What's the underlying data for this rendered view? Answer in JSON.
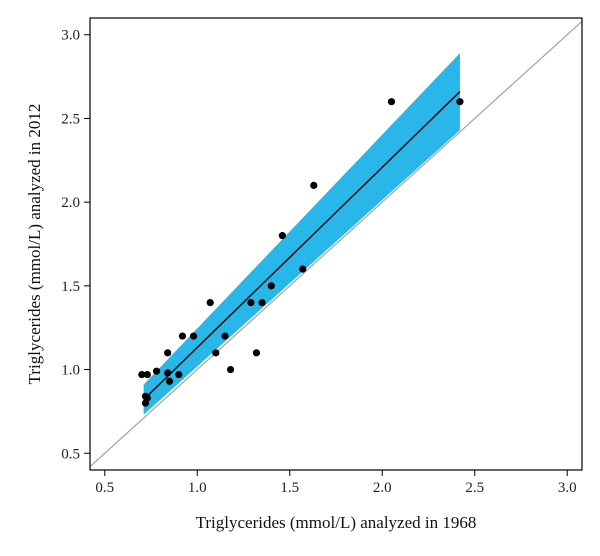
{
  "chart_data": {
    "type": "scatter",
    "xlabel": "Triglycerides (mmol/L) analyzed in 1968",
    "ylabel": "Triglycerides (mmol/L) analyzed in 2012",
    "xlim": [
      0.42,
      3.08
    ],
    "ylim": [
      0.4,
      3.1
    ],
    "x_ticks": [
      0.5,
      1.0,
      1.5,
      2.0,
      2.5,
      3.0
    ],
    "y_ticks": [
      0.5,
      1.0,
      1.5,
      2.0,
      2.5,
      3.0
    ],
    "x_tick_labels": [
      "0.5",
      "1.0",
      "1.5",
      "2.0",
      "2.5",
      "3.0"
    ],
    "y_tick_labels": [
      "0.5",
      "1.0",
      "1.5",
      "2.0",
      "2.5",
      "3.0"
    ],
    "grid": false,
    "points": [
      {
        "x": 0.7,
        "y": 0.97
      },
      {
        "x": 0.73,
        "y": 0.97
      },
      {
        "x": 0.72,
        "y": 0.84
      },
      {
        "x": 0.73,
        "y": 0.83
      },
      {
        "x": 0.72,
        "y": 0.8
      },
      {
        "x": 0.78,
        "y": 0.99
      },
      {
        "x": 0.84,
        "y": 1.1
      },
      {
        "x": 0.84,
        "y": 0.98
      },
      {
        "x": 0.85,
        "y": 0.93
      },
      {
        "x": 0.9,
        "y": 0.97
      },
      {
        "x": 0.92,
        "y": 1.2
      },
      {
        "x": 0.98,
        "y": 1.2
      },
      {
        "x": 1.07,
        "y": 1.4
      },
      {
        "x": 1.1,
        "y": 1.1
      },
      {
        "x": 1.15,
        "y": 1.2
      },
      {
        "x": 1.18,
        "y": 1.0
      },
      {
        "x": 1.29,
        "y": 1.4
      },
      {
        "x": 1.32,
        "y": 1.1
      },
      {
        "x": 1.35,
        "y": 1.4
      },
      {
        "x": 1.4,
        "y": 1.5
      },
      {
        "x": 1.46,
        "y": 1.8
      },
      {
        "x": 1.57,
        "y": 1.6
      },
      {
        "x": 1.63,
        "y": 2.1
      },
      {
        "x": 2.05,
        "y": 2.6
      },
      {
        "x": 2.42,
        "y": 2.6
      }
    ],
    "regression_line": {
      "x": [
        0.71,
        2.42
      ],
      "y": [
        0.82,
        2.66
      ]
    },
    "confidence_band": {
      "x": [
        0.71,
        2.42
      ],
      "upper": [
        0.91,
        2.89
      ],
      "lower": [
        0.73,
        2.43
      ]
    },
    "identity_line": {
      "x": [
        0.42,
        3.08
      ],
      "y": [
        0.42,
        3.08
      ]
    },
    "colors": {
      "band": "#29b6e8",
      "points": "#000000",
      "regression": "#000000",
      "identity": "#a8a8a8",
      "frame": "#000000"
    }
  }
}
